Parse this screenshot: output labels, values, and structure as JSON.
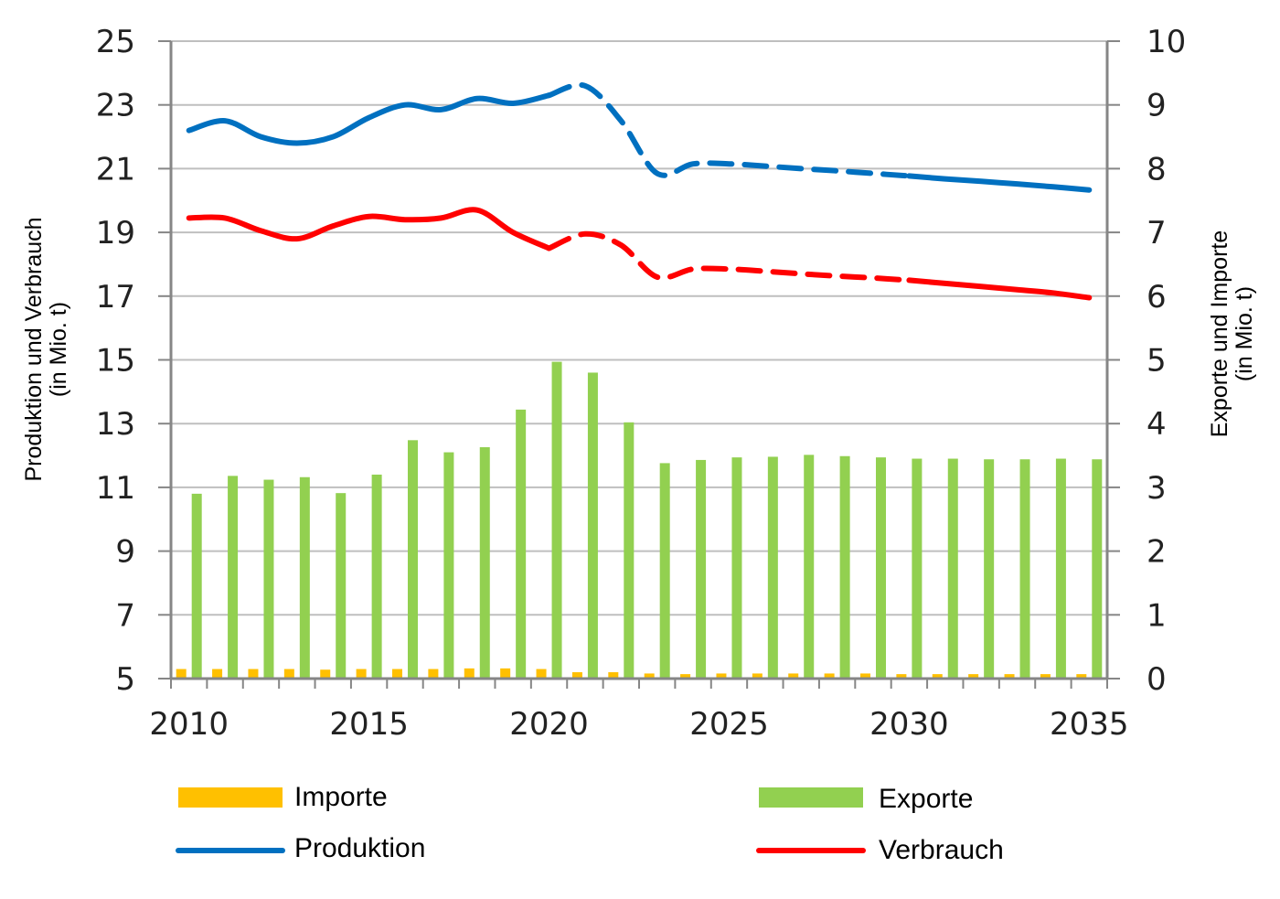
{
  "chart_data": {
    "type": "bar",
    "x_start": 2010,
    "x_end": 2035,
    "projection_start_year": 2020,
    "x_ticks": [
      "2010",
      "2015",
      "2020",
      "2025",
      "2030",
      "2035"
    ],
    "left_axis": {
      "label_line1": "Produktion und Verbrauch",
      "label_line2": "(in Mio. t)",
      "ylim": [
        5,
        25
      ],
      "ticks": [
        "5",
        "7",
        "9",
        "11",
        "13",
        "15",
        "17",
        "19",
        "21",
        "23",
        "25"
      ]
    },
    "right_axis": {
      "label_line1": "Exporte und Importe",
      "label_line2": "(in Mio. t)",
      "ylim": [
        0,
        10
      ],
      "ticks": [
        "0",
        "1",
        "2",
        "3",
        "4",
        "5",
        "6",
        "7",
        "8",
        "9",
        "10"
      ]
    },
    "grid": true,
    "bar_series": [
      {
        "name": "Importe",
        "color": "#FFC000",
        "axis": "right",
        "values": [
          0.15,
          0.15,
          0.15,
          0.15,
          0.14,
          0.15,
          0.15,
          0.15,
          0.16,
          0.16,
          0.15,
          0.1,
          0.1,
          0.08,
          0.07,
          0.08,
          0.08,
          0.08,
          0.08,
          0.08,
          0.07,
          0.07,
          0.07,
          0.07,
          0.07,
          0.07
        ]
      },
      {
        "name": "Exporte",
        "color": "#92D050",
        "axis": "right",
        "values": [
          2.9,
          3.18,
          3.12,
          3.16,
          2.91,
          3.2,
          3.74,
          3.55,
          3.63,
          4.22,
          4.97,
          4.8,
          4.02,
          3.38,
          3.43,
          3.47,
          3.48,
          3.51,
          3.49,
          3.47,
          3.45,
          3.45,
          3.44,
          3.44,
          3.45,
          3.44
        ]
      }
    ],
    "line_series": [
      {
        "name": "Produktion",
        "color": "#0070C0",
        "axis": "left",
        "values": [
          22.2,
          22.5,
          22.0,
          21.8,
          22.0,
          22.6,
          23.0,
          22.85,
          23.2,
          23.05,
          23.3,
          23.6,
          22.5,
          20.85,
          21.15,
          21.15,
          21.08,
          21.0,
          20.93,
          20.85,
          20.77,
          20.68,
          20.6,
          20.52,
          20.43,
          20.33
        ]
      },
      {
        "name": "Verbrauch",
        "color": "#FF0000",
        "axis": "left",
        "values": [
          19.45,
          19.45,
          19.05,
          18.8,
          19.2,
          19.5,
          19.4,
          19.45,
          19.7,
          19.0,
          18.5,
          18.95,
          18.6,
          17.6,
          17.85,
          17.85,
          17.78,
          17.7,
          17.63,
          17.57,
          17.5,
          17.4,
          17.3,
          17.2,
          17.1,
          16.95
        ]
      }
    ]
  },
  "legend": {
    "importe": "Importe",
    "exporte": "Exporte",
    "produktion": "Produktion",
    "verbrauch": "Verbrauch"
  }
}
